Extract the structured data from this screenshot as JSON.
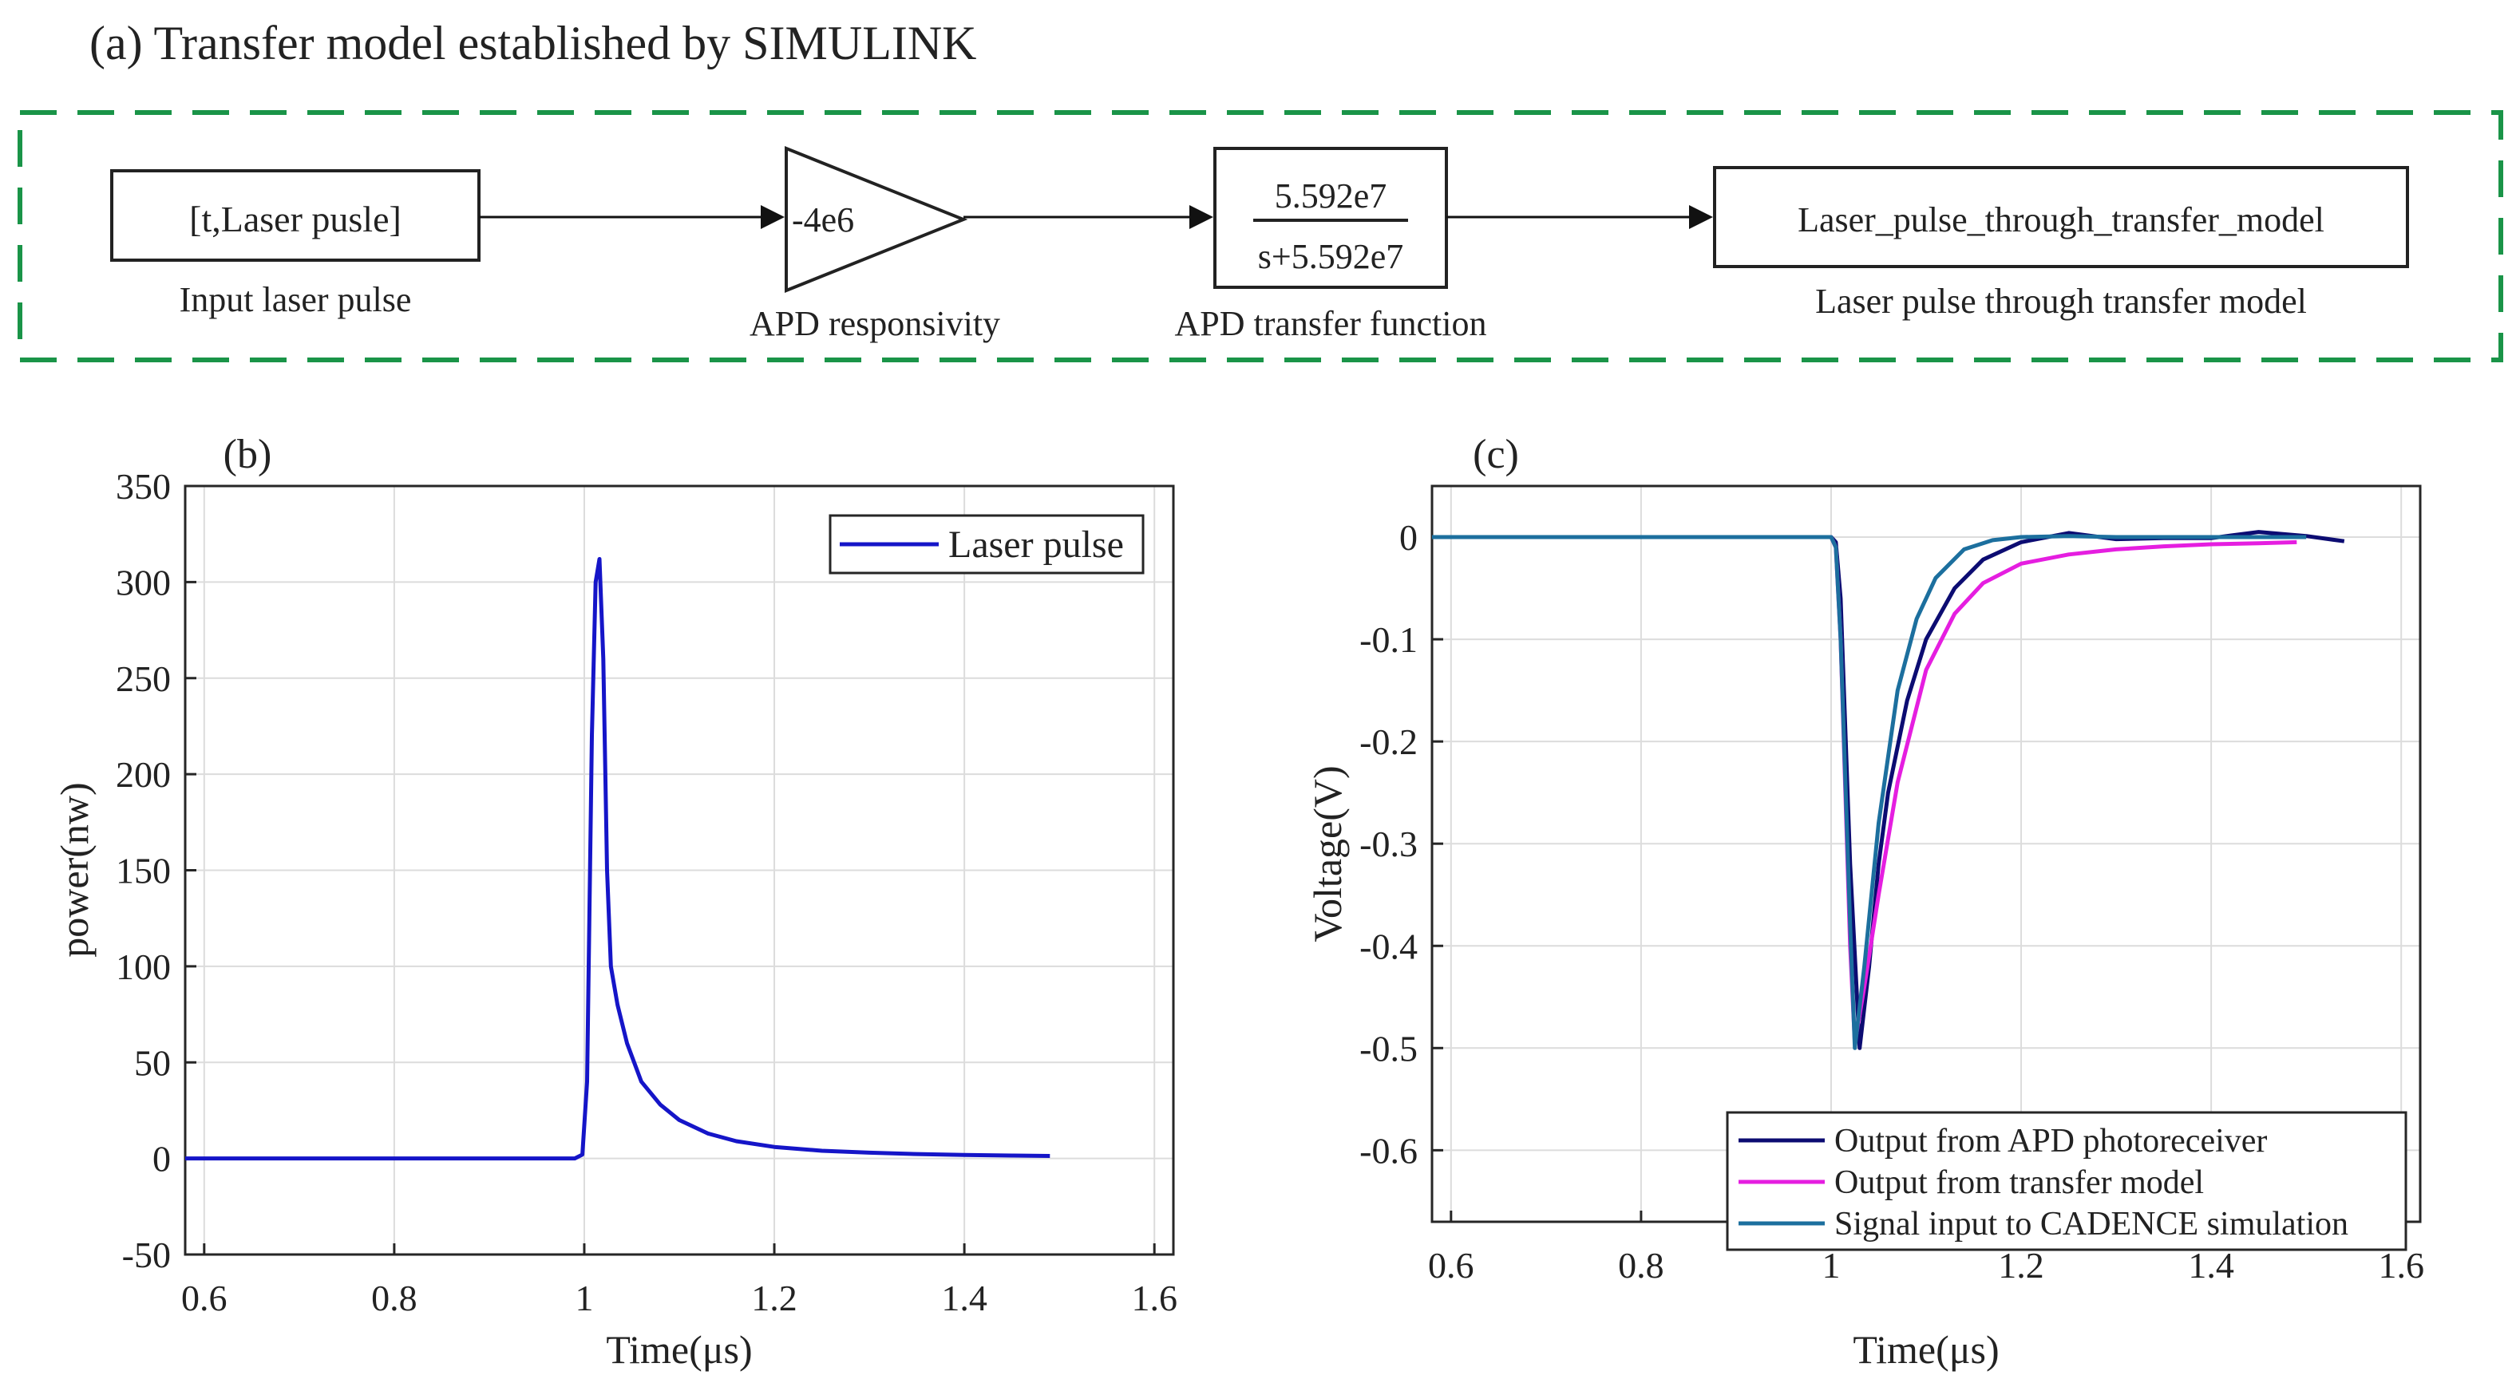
{
  "panel_a": {
    "title": "(a) Transfer model established by SIMULINK",
    "blocks": {
      "input": {
        "text": "[t,Laser pusle]",
        "caption": "Input laser pulse"
      },
      "gain": {
        "text": "-4e6",
        "caption": "APD responsivity"
      },
      "transfer": {
        "numerator": "5.592e7",
        "denominator": "s+5.592e7",
        "caption": "APD transfer function"
      },
      "output": {
        "text": "Laser_pulse_through_transfer_model",
        "caption": "Laser pulse through transfer model"
      }
    }
  },
  "colors": {
    "dash_border": "#1a9448",
    "laser": "#1515c8",
    "apd": "#0c0c72",
    "model": "#e51ee0",
    "cadence": "#1c6f9e",
    "grid": "#dcdcdc",
    "axis": "#262626"
  },
  "chart_data": [
    {
      "panel_label": "(b)",
      "type": "line",
      "title": "",
      "xlabel": "Time(μs)",
      "ylabel": "power(nw)",
      "xlim": [
        0.58,
        1.62
      ],
      "ylim": [
        -50,
        350
      ],
      "xticks": [
        0.6,
        0.8,
        1.0,
        1.2,
        1.4,
        1.6
      ],
      "xtick_labels": [
        "0.6",
        "0.8",
        "1",
        "1.2",
        "1.4",
        "1.6"
      ],
      "yticks": [
        -50,
        0,
        50,
        100,
        150,
        200,
        250,
        300,
        350
      ],
      "ytick_labels": [
        "-50",
        "0",
        "50",
        "100",
        "150",
        "200",
        "250",
        "300",
        "350"
      ],
      "grid": true,
      "legend_position": "top-right",
      "series": [
        {
          "name": "Laser pulse",
          "x": [
            0.58,
            0.7,
            0.8,
            0.9,
            0.99,
            0.998,
            1.003,
            1.008,
            1.012,
            1.016,
            1.02,
            1.024,
            1.028,
            1.035,
            1.045,
            1.06,
            1.08,
            1.1,
            1.13,
            1.16,
            1.2,
            1.25,
            1.3,
            1.35,
            1.4,
            1.45,
            1.49
          ],
          "y": [
            0,
            0,
            0,
            0,
            0,
            2,
            40,
            220,
            300,
            312,
            260,
            150,
            100,
            80,
            60,
            40,
            28,
            20,
            13,
            9,
            6,
            4,
            3,
            2.3,
            1.8,
            1.5,
            1.3
          ]
        }
      ]
    },
    {
      "panel_label": "(c)",
      "type": "line",
      "title": "",
      "xlabel": "Time(μs)",
      "ylabel": "Voltage(V)",
      "xlim": [
        0.58,
        1.62
      ],
      "ylim": [
        -0.67,
        0.05
      ],
      "xticks": [
        0.6,
        0.8,
        1.0,
        1.2,
        1.4,
        1.6
      ],
      "xtick_labels": [
        "0.6",
        "0.8",
        "1",
        "1.2",
        "1.4",
        "1.6"
      ],
      "yticks": [
        0,
        -0.1,
        -0.2,
        -0.3,
        -0.4,
        -0.5,
        -0.6
      ],
      "ytick_labels": [
        "0",
        "-0.1",
        "-0.2",
        "-0.3",
        "-0.4",
        "-0.5",
        "-0.6"
      ],
      "grid": true,
      "legend_position": "bottom-right",
      "series": [
        {
          "name": "Output from APD photoreceiver",
          "x": [
            0.58,
            0.8,
            1.0,
            1.005,
            1.01,
            1.02,
            1.03,
            1.04,
            1.05,
            1.06,
            1.08,
            1.1,
            1.13,
            1.16,
            1.2,
            1.25,
            1.3,
            1.35,
            1.4,
            1.45,
            1.5,
            1.54
          ],
          "y": [
            0,
            0,
            0,
            -0.005,
            -0.06,
            -0.32,
            -0.5,
            -0.42,
            -0.32,
            -0.25,
            -0.16,
            -0.1,
            -0.05,
            -0.022,
            -0.005,
            0.004,
            -0.002,
            -0.001,
            -0.001,
            0.005,
            0.001,
            -0.004
          ]
        },
        {
          "name": "Output from transfer model",
          "x": [
            0.58,
            0.8,
            1.0,
            1.005,
            1.01,
            1.02,
            1.025,
            1.035,
            1.05,
            1.07,
            1.1,
            1.13,
            1.16,
            1.2,
            1.25,
            1.3,
            1.35,
            1.4,
            1.45,
            1.49
          ],
          "y": [
            0,
            0,
            0,
            -0.01,
            -0.1,
            -0.4,
            -0.495,
            -0.44,
            -0.35,
            -0.24,
            -0.13,
            -0.075,
            -0.045,
            -0.026,
            -0.017,
            -0.012,
            -0.009,
            -0.007,
            -0.006,
            -0.005
          ]
        },
        {
          "name": "Signal input to CADENCE simulation",
          "x": [
            0.58,
            0.8,
            1.0,
            1.005,
            1.01,
            1.02,
            1.025,
            1.035,
            1.05,
            1.07,
            1.09,
            1.11,
            1.14,
            1.17,
            1.2,
            1.25,
            1.3,
            1.4,
            1.5
          ],
          "y": [
            0,
            0,
            0,
            -0.01,
            -0.1,
            -0.38,
            -0.5,
            -0.42,
            -0.28,
            -0.15,
            -0.08,
            -0.04,
            -0.012,
            -0.003,
            0,
            0.001,
            0,
            0,
            0
          ]
        }
      ]
    }
  ]
}
